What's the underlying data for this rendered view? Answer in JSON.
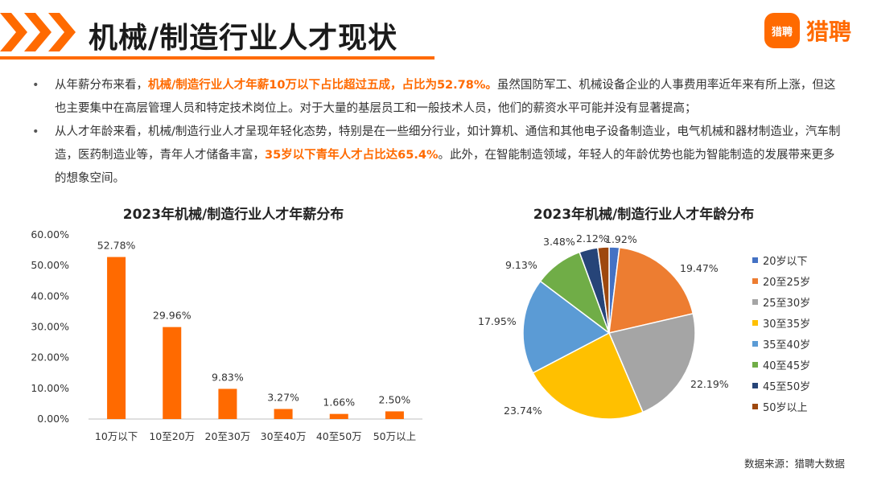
{
  "header": {
    "title": "机械/制造行业人才现状",
    "logo_badge": "猎聘",
    "logo_text": "猎聘",
    "accent_color": "#ff6a00"
  },
  "bullets": [
    {
      "pre": "从年薪分布来看，",
      "highlight": "机械/制造行业人才年薪10万以下占比超过五成，占比为52.78%。",
      "post": "虽然国防军工、机械设备企业的人事费用率近年来有所上涨，但这也主要集中在高层管理人员和特定技术岗位上。对于大量的基层员工和一般技术人员，他们的薪资水平可能并没有显著提高；"
    },
    {
      "pre": "从人才年龄来看，机械/制造行业人才呈现年轻化态势，特别是在一些细分行业，如计算机、通信和其他电子设备制造业，电气机械和器材制造业，汽车制造，医药制造业等，青年人才储备丰富，",
      "highlight": "35岁以下青年人才占比达65.4%",
      "post": "。此外，在智能制造领域，年轻人的年龄优势也能为智能制造的发展带来更多的想象空间。"
    }
  ],
  "chart_data": [
    {
      "type": "bar",
      "title": "2023年机械/制造行业人才年薪分布",
      "categories": [
        "10万以下",
        "10至20万",
        "20至30万",
        "30至40万",
        "40至50万",
        "50万以上"
      ],
      "values": [
        52.78,
        29.96,
        9.83,
        3.27,
        1.66,
        2.5
      ],
      "data_labels": [
        "52.78%",
        "29.96%",
        "9.83%",
        "3.27%",
        "1.66%",
        "2.50%"
      ],
      "ylim": [
        0,
        60
      ],
      "yticks": [
        "0.00%",
        "10.00%",
        "20.00%",
        "30.00%",
        "40.00%",
        "50.00%",
        "60.00%"
      ],
      "grid": false,
      "color": "#ff6a00"
    },
    {
      "type": "pie",
      "title": "2023年机械/制造行业人才年龄分布",
      "categories": [
        "20岁以下",
        "20至25岁",
        "25至30岁",
        "30至35岁",
        "35至40岁",
        "40至45岁",
        "45至50岁",
        "50岁以上"
      ],
      "values": [
        1.92,
        19.47,
        22.19,
        23.74,
        17.95,
        9.13,
        3.48,
        2.12
      ],
      "data_labels": [
        "1.92%",
        "19.47%",
        "22.19%",
        "23.74%",
        "17.95%",
        "9.13%",
        "3.48%",
        "2.12%"
      ],
      "colors": [
        "#4472c4",
        "#ed7d31",
        "#a5a5a5",
        "#ffc000",
        "#5b9bd5",
        "#70ad47",
        "#264478",
        "#9e480e"
      ],
      "legend_position": "right"
    }
  ],
  "source": "数据来源：猎聘大数据"
}
